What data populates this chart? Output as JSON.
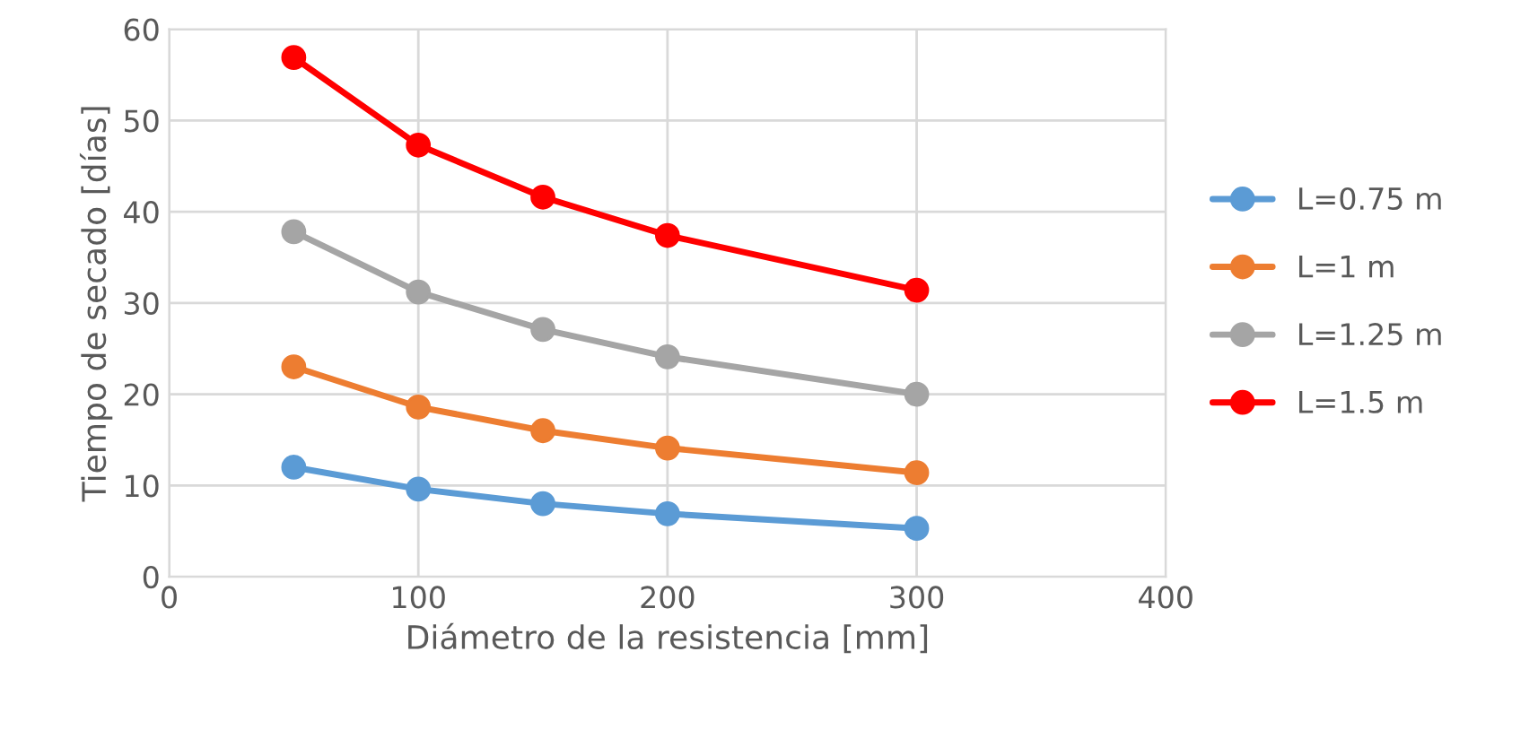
{
  "chart_data": {
    "type": "line",
    "xlabel": "Diámetro de la resistencia [mm]",
    "ylabel": "Tiempo de secado [días]",
    "x": [
      50,
      100,
      150,
      200,
      300
    ],
    "series": [
      {
        "name": "L=0.75 m",
        "color": "#5b9bd5",
        "values": [
          12.0,
          9.6,
          8.0,
          6.9,
          5.3
        ]
      },
      {
        "name": "L=1 m",
        "color": "#ed7d31",
        "values": [
          23.0,
          18.6,
          16.0,
          14.1,
          11.4
        ]
      },
      {
        "name": "L=1.25 m",
        "color": "#a5a5a5",
        "values": [
          37.8,
          31.2,
          27.1,
          24.1,
          20.0
        ]
      },
      {
        "name": "L=1.5 m",
        "color": "#ff0000",
        "values": [
          56.9,
          47.3,
          41.6,
          37.4,
          31.4
        ]
      }
    ],
    "xlim": [
      0,
      400
    ],
    "xticks": [
      0,
      100,
      200,
      300,
      400
    ],
    "ylim": [
      0,
      60
    ],
    "yticks": [
      0,
      10,
      20,
      30,
      40,
      50,
      60
    ],
    "grid": true,
    "legend": "right",
    "marker": "circle",
    "line_style": "solid"
  }
}
